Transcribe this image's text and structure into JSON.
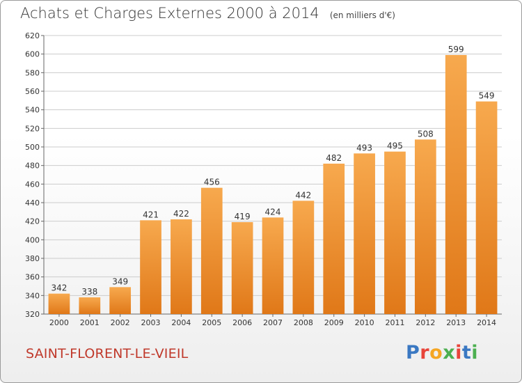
{
  "header": {
    "title": "Achats et Charges Externes 2000 à 2014",
    "unit": "(en milliers d'€)"
  },
  "commune": "SAINT-FLORENT-LE-VIEIL",
  "logo": {
    "text": "Proxiti",
    "letter_colors": [
      "#3a78c2",
      "#e8443a",
      "#f5a623",
      "#4caf50",
      "#e8443a",
      "#3a78c2",
      "#4caf50"
    ]
  },
  "colors": {
    "bar_light": "#f7a94e",
    "bar_dark": "#e07818",
    "label": "#333333",
    "grid": "#cccccc",
    "commune": "#c0392b"
  },
  "chart_data": {
    "type": "bar",
    "title": "Achats et Charges Externes 2000 à 2014",
    "subtitle": "(en milliers d'€)",
    "categories": [
      "2000",
      "2001",
      "2002",
      "2003",
      "2004",
      "2005",
      "2006",
      "2007",
      "2008",
      "2009",
      "2010",
      "2011",
      "2012",
      "2013",
      "2014"
    ],
    "values": [
      342,
      338,
      349,
      421,
      422,
      456,
      419,
      424,
      442,
      482,
      493,
      495,
      508,
      599,
      549
    ],
    "ylim": [
      320,
      620
    ],
    "yticks": [
      320,
      340,
      360,
      380,
      400,
      420,
      440,
      460,
      480,
      500,
      520,
      540,
      560,
      580,
      600,
      620
    ],
    "grid": true,
    "data_labels": true
  }
}
